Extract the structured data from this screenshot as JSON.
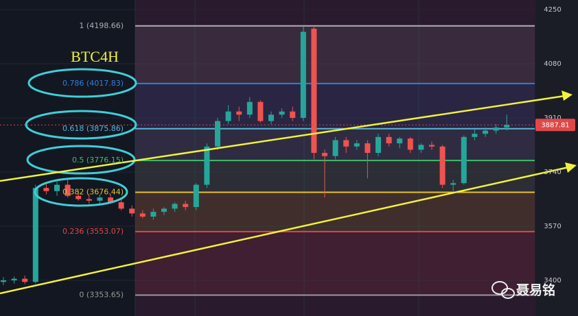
{
  "chart_data": {
    "type": "candlestick",
    "title": "BTC4H",
    "open": [
      3395,
      3400,
      3405,
      3395,
      3690,
      3680,
      3700,
      3665,
      3655,
      3650,
      3660,
      3645,
      3625,
      3610,
      3600,
      3615,
      3625,
      3640,
      3630,
      3700,
      3820,
      3900,
      3930,
      3920,
      3960,
      3900,
      3920,
      3930,
      3910,
      4190,
      3800,
      3790,
      3840,
      3820,
      3830,
      3800,
      3850,
      3830,
      3845,
      3810,
      3825,
      3820,
      3700,
      3705,
      3850,
      3860,
      3870,
      3880
    ],
    "high": [
      3410,
      3412,
      3415,
      3700,
      3705,
      3710,
      3715,
      3680,
      3670,
      3670,
      3670,
      3655,
      3635,
      3620,
      3625,
      3630,
      3645,
      3650,
      3705,
      3830,
      3910,
      3950,
      3945,
      3975,
      3965,
      3930,
      3940,
      3945,
      4198,
      4195,
      3810,
      3850,
      3850,
      3840,
      3840,
      3860,
      3860,
      3850,
      3850,
      3830,
      3835,
      3825,
      3715,
      3855,
      3875,
      3880,
      3890,
      3920
    ],
    "low": [
      3385,
      3390,
      3388,
      3390,
      3670,
      3665,
      3660,
      3650,
      3640,
      3640,
      3640,
      3620,
      3600,
      3595,
      3590,
      3605,
      3615,
      3620,
      3620,
      3690,
      3810,
      3890,
      3900,
      3910,
      3895,
      3890,
      3910,
      3900,
      3900,
      3780,
      3660,
      3780,
      3800,
      3810,
      3720,
      3790,
      3820,
      3815,
      3800,
      3800,
      3810,
      3690,
      3680,
      3700,
      3840,
      3850,
      3860,
      3870
    ],
    "close": [
      3400,
      3405,
      3395,
      3690,
      3680,
      3700,
      3665,
      3655,
      3650,
      3660,
      3645,
      3625,
      3610,
      3600,
      3615,
      3625,
      3640,
      3630,
      3700,
      3820,
      3900,
      3930,
      3920,
      3960,
      3900,
      3920,
      3930,
      3910,
      4180,
      3800,
      3790,
      3840,
      3820,
      3830,
      3800,
      3850,
      3830,
      3845,
      3810,
      3825,
      3820,
      3700,
      3705,
      3850,
      3860,
      3870,
      3880,
      3888
    ],
    "up_color": "#26a69a",
    "down_color": "#ef5350",
    "ylim": [
      3288,
      4280
    ],
    "yticks": [
      3400,
      3570,
      3740,
      3910,
      4080,
      4250
    ],
    "fib_levels": [
      {
        "value": 4198.66,
        "label": "1 (4198.66)",
        "color": "#b0b0b0"
      },
      {
        "value": 4017.83,
        "label": "0.786 (4017.83)",
        "color": "#2f7fe0"
      },
      {
        "value": 3875.86,
        "label": "0.618 (3875.86)",
        "color": "#5ab6d8"
      },
      {
        "value": 3776.15,
        "label": "0.5 (3776.15)",
        "color": "#3fbf6a"
      },
      {
        "value": 3676.44,
        "label": "0.382 (3676.44)",
        "color": "#e6c229"
      },
      {
        "value": 3553.07,
        "label": "0.236 (3553.07)",
        "color": "#e04848"
      },
      {
        "value": 3353.65,
        "label": "0 (3353.65)",
        "color": "#9a9a9a"
      }
    ],
    "last_price": 3887.81,
    "last_price_color": "#e04848",
    "watermark": "聂易铭"
  }
}
